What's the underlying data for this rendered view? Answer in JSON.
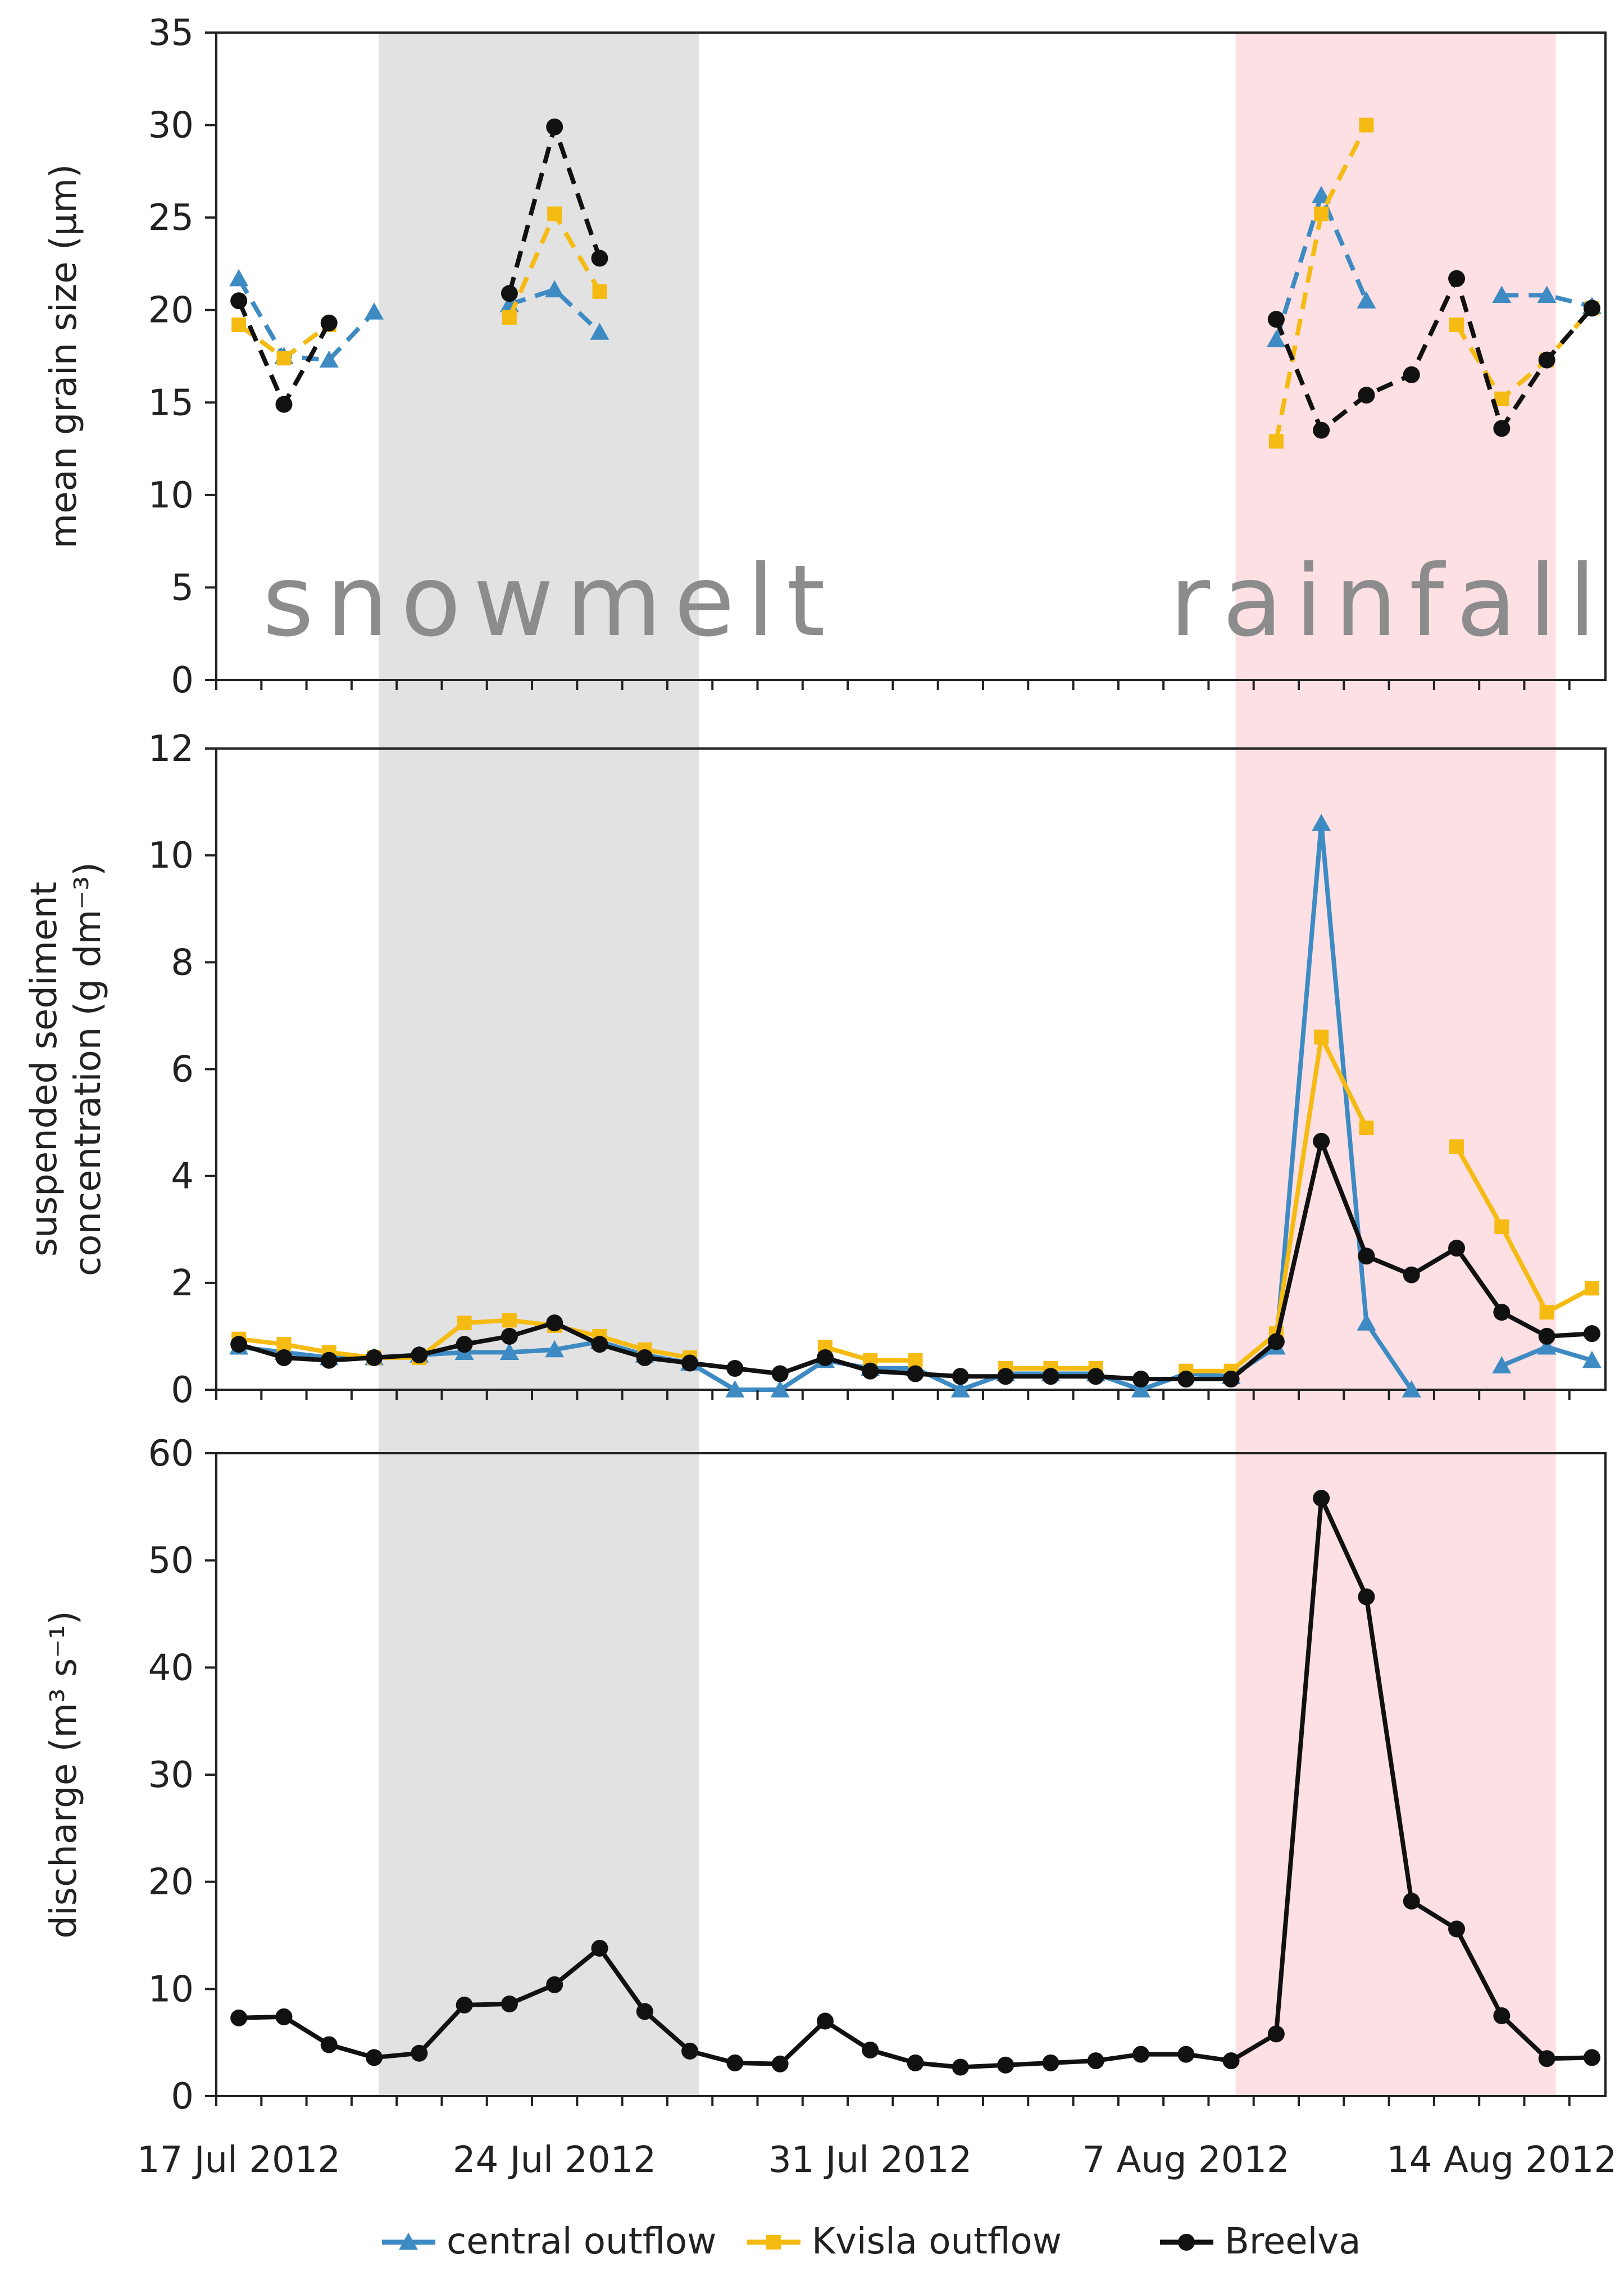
{
  "chart_data": {
    "type": "line",
    "x_axis": {
      "unit": "days since 17 Jul 2012",
      "range": [
        0,
        30.8
      ],
      "tick_positions": [
        0,
        7,
        14,
        21,
        28
      ],
      "tick_labels": [
        "17 Jul 2012",
        "24 Jul 2012",
        "31 Jul 2012",
        "7 Aug 2012",
        "14 Aug 2012"
      ]
    },
    "shaded_periods": [
      {
        "name": "snowmelt",
        "label": "snowmelt",
        "start": 3.6,
        "end": 10.7,
        "color": "#e2e2e2",
        "label_anchor_day": 7.4
      },
      {
        "name": "rainfall",
        "label": "rainfall",
        "start": 22.6,
        "end": 29.7,
        "color": "#fde0e3",
        "label_anchor_day": 26.0
      }
    ],
    "legend": {
      "position": "bottom-center",
      "entries": [
        {
          "name": "central outflow",
          "label": "central outflow",
          "color": "#3e8bc4",
          "marker": "triangle"
        },
        {
          "name": "Kvisla outflow",
          "label": "Kvisla outflow",
          "color": "#f5bb12",
          "marker": "square"
        },
        {
          "name": "Breelva",
          "label": "Breelva",
          "color": "#111111",
          "marker": "circle"
        }
      ]
    },
    "panels": [
      {
        "id": "grain",
        "ylabel": "mean grain size (μm)",
        "ylim": [
          0,
          35
        ],
        "yticks": [
          0,
          5,
          10,
          15,
          20,
          25,
          30,
          35
        ],
        "line_style": "dashed",
        "series": [
          {
            "name": "central outflow",
            "segments": [
              [
                [
                  0.5,
                  21.7
                ],
                [
                  1.5,
                  17.5
                ],
                [
                  2.5,
                  17.3
                ],
                [
                  3.5,
                  19.9
                ]
              ],
              [
                [
                  6.5,
                  20.3
                ],
                [
                  7.5,
                  21.1
                ],
                [
                  8.5,
                  18.8
                ]
              ],
              [
                [
                  23.5,
                  18.4
                ],
                [
                  24.5,
                  26.2
                ],
                [
                  25.5,
                  20.5
                ]
              ],
              [
                [
                  28.5,
                  20.8
                ],
                [
                  29.5,
                  20.8
                ],
                [
                  30.5,
                  20.2
                ]
              ]
            ]
          },
          {
            "name": "Kvisla outflow",
            "segments": [
              [
                [
                  0.5,
                  19.2
                ],
                [
                  1.5,
                  17.4
                ],
                [
                  2.5,
                  19.2
                ]
              ],
              [
                [
                  6.5,
                  19.6
                ],
                [
                  7.5,
                  25.2
                ],
                [
                  8.5,
                  21.0
                ]
              ],
              [
                [
                  23.5,
                  12.9
                ],
                [
                  24.5,
                  25.2
                ],
                [
                  25.5,
                  30.0
                ]
              ],
              [
                [
                  27.5,
                  19.2
                ],
                [
                  28.5,
                  15.2
                ],
                [
                  29.5,
                  17.3
                ],
                [
                  30.5,
                  20.1
                ]
              ]
            ]
          },
          {
            "name": "Breelva",
            "segments": [
              [
                [
                  0.5,
                  20.5
                ],
                [
                  1.5,
                  14.9
                ],
                [
                  2.5,
                  19.3
                ]
              ],
              [
                [
                  6.5,
                  20.9
                ],
                [
                  7.5,
                  29.9
                ],
                [
                  8.5,
                  22.8
                ]
              ],
              [
                [
                  23.5,
                  19.5
                ],
                [
                  24.5,
                  13.5
                ],
                [
                  25.5,
                  15.4
                ],
                [
                  26.5,
                  16.5
                ],
                [
                  27.5,
                  21.7
                ],
                [
                  28.5,
                  13.6
                ],
                [
                  29.5,
                  17.3
                ],
                [
                  30.5,
                  20.1
                ]
              ]
            ]
          }
        ]
      },
      {
        "id": "ssc",
        "ylabel": "suspended sediment concentration (g dm⁻³)",
        "ylabel_line1": "suspended sediment",
        "ylabel_line2": "concentration (g dm⁻³)",
        "ylim": [
          0,
          12
        ],
        "yticks": [
          0,
          2,
          4,
          6,
          8,
          10,
          12
        ],
        "line_style": "solid",
        "series": [
          {
            "name": "central outflow",
            "segments": [
              [
                [
                  0.5,
                  0.8
                ],
                [
                  1.5,
                  0.7
                ],
                [
                  2.5,
                  0.6
                ],
                [
                  3.5,
                  0.6
                ],
                [
                  4.5,
                  0.65
                ],
                [
                  5.5,
                  0.7
                ],
                [
                  6.5,
                  0.7
                ],
                [
                  7.5,
                  0.75
                ],
                [
                  8.5,
                  0.9
                ],
                [
                  9.5,
                  0.65
                ],
                [
                  10.5,
                  0.5
                ],
                [
                  11.5,
                  0.0
                ],
                [
                  12.5,
                  0.0
                ],
                [
                  13.5,
                  0.55
                ],
                [
                  14.5,
                  0.4
                ],
                [
                  15.5,
                  0.4
                ],
                [
                  16.5,
                  0.0
                ],
                [
                  17.5,
                  0.3
                ],
                [
                  18.5,
                  0.3
                ],
                [
                  19.5,
                  0.3
                ],
                [
                  20.5,
                  0.0
                ],
                [
                  21.5,
                  0.3
                ],
                [
                  22.5,
                  0.25
                ],
                [
                  23.5,
                  0.8
                ],
                [
                  24.5,
                  10.6
                ],
                [
                  25.5,
                  1.25
                ],
                [
                  26.5,
                  0.0
                ]
              ],
              [
                [
                  28.5,
                  0.45
                ],
                [
                  29.5,
                  0.8
                ],
                [
                  30.5,
                  0.55
                ]
              ]
            ]
          },
          {
            "name": "Kvisla outflow",
            "segments": [
              [
                [
                  0.5,
                  0.95
                ],
                [
                  1.5,
                  0.85
                ],
                [
                  2.5,
                  0.7
                ],
                [
                  3.5,
                  0.6
                ],
                [
                  4.5,
                  0.6
                ],
                [
                  5.5,
                  1.25
                ],
                [
                  6.5,
                  1.3
                ],
                [
                  7.5,
                  1.2
                ],
                [
                  8.5,
                  1.0
                ],
                [
                  9.5,
                  0.75
                ],
                [
                  10.5,
                  0.6
                ]
              ],
              [
                [
                  13.5,
                  0.8
                ],
                [
                  14.5,
                  0.55
                ],
                [
                  15.5,
                  0.55
                ]
              ],
              [
                [
                  17.5,
                  0.4
                ],
                [
                  18.5,
                  0.4
                ],
                [
                  19.5,
                  0.4
                ]
              ],
              [
                [
                  21.5,
                  0.35
                ],
                [
                  22.5,
                  0.35
                ],
                [
                  23.5,
                  1.05
                ],
                [
                  24.5,
                  6.6
                ],
                [
                  25.5,
                  4.9
                ]
              ],
              [
                [
                  27.5,
                  4.55
                ],
                [
                  28.5,
                  3.05
                ],
                [
                  29.5,
                  1.45
                ],
                [
                  30.5,
                  1.9
                ]
              ]
            ]
          },
          {
            "name": "Breelva",
            "segments": [
              [
                [
                  0.5,
                  0.85
                ],
                [
                  1.5,
                  0.6
                ],
                [
                  2.5,
                  0.55
                ],
                [
                  3.5,
                  0.6
                ],
                [
                  4.5,
                  0.65
                ],
                [
                  5.5,
                  0.85
                ],
                [
                  6.5,
                  1.0
                ],
                [
                  7.5,
                  1.25
                ],
                [
                  8.5,
                  0.85
                ],
                [
                  9.5,
                  0.6
                ],
                [
                  10.5,
                  0.5
                ],
                [
                  11.5,
                  0.4
                ],
                [
                  12.5,
                  0.3
                ],
                [
                  13.5,
                  0.6
                ],
                [
                  14.5,
                  0.35
                ],
                [
                  15.5,
                  0.3
                ],
                [
                  16.5,
                  0.25
                ],
                [
                  17.5,
                  0.25
                ],
                [
                  18.5,
                  0.25
                ],
                [
                  19.5,
                  0.25
                ],
                [
                  20.5,
                  0.2
                ],
                [
                  21.5,
                  0.2
                ],
                [
                  22.5,
                  0.2
                ],
                [
                  23.5,
                  0.9
                ],
                [
                  24.5,
                  4.65
                ],
                [
                  25.5,
                  2.5
                ],
                [
                  26.5,
                  2.15
                ],
                [
                  27.5,
                  2.65
                ],
                [
                  28.5,
                  1.45
                ],
                [
                  29.5,
                  1.0
                ],
                [
                  30.5,
                  1.05
                ]
              ]
            ]
          }
        ]
      },
      {
        "id": "discharge",
        "ylabel": "discharge (m³ s⁻¹)",
        "ylim": [
          0,
          60
        ],
        "yticks": [
          0,
          10,
          20,
          30,
          40,
          50,
          60
        ],
        "line_style": "solid",
        "series": [
          {
            "name": "Breelva",
            "segments": [
              [
                [
                  0.5,
                  7.3
                ],
                [
                  1.5,
                  7.4
                ],
                [
                  2.5,
                  4.8
                ],
                [
                  3.5,
                  3.6
                ],
                [
                  4.5,
                  4.0
                ],
                [
                  5.5,
                  8.5
                ],
                [
                  6.5,
                  8.6
                ],
                [
                  7.5,
                  10.4
                ],
                [
                  8.5,
                  13.8
                ],
                [
                  9.5,
                  7.9
                ],
                [
                  10.5,
                  4.2
                ],
                [
                  11.5,
                  3.1
                ],
                [
                  12.5,
                  3.0
                ],
                [
                  13.5,
                  7.0
                ],
                [
                  14.5,
                  4.3
                ],
                [
                  15.5,
                  3.1
                ],
                [
                  16.5,
                  2.7
                ],
                [
                  17.5,
                  2.9
                ],
                [
                  18.5,
                  3.1
                ],
                [
                  19.5,
                  3.3
                ],
                [
                  20.5,
                  3.9
                ],
                [
                  21.5,
                  3.9
                ],
                [
                  22.5,
                  3.3
                ],
                [
                  23.5,
                  5.8
                ],
                [
                  24.5,
                  55.8
                ],
                [
                  25.5,
                  46.6
                ],
                [
                  26.5,
                  18.2
                ],
                [
                  27.5,
                  15.6
                ],
                [
                  28.5,
                  7.5
                ],
                [
                  29.5,
                  3.5
                ],
                [
                  30.5,
                  3.6
                ]
              ]
            ]
          }
        ]
      }
    ]
  }
}
